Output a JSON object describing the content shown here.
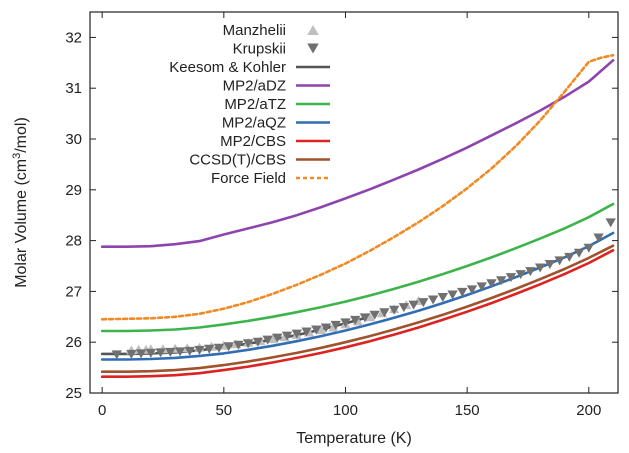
{
  "chart_data": {
    "type": "line",
    "title": "",
    "xlabel": "Temperature (K)",
    "ylabel": "Molar Volume (cm³/mol)",
    "ylabel_parts": {
      "before": "Molar Volume (cm",
      "sup": "3",
      "after": "/mol)"
    },
    "xlim": [
      -5,
      212
    ],
    "ylim": [
      25,
      32.5
    ],
    "xticks": [
      0,
      50,
      100,
      150,
      200
    ],
    "yticks": [
      25,
      26,
      27,
      28,
      29,
      30,
      31,
      32
    ],
    "grid": false,
    "legend_position": "top-left",
    "series": [
      {
        "name": "Manzhelii",
        "kind": "marker",
        "marker": "triangle-up",
        "color": "#bfbfbf",
        "x": [
          12,
          15,
          18,
          20,
          25,
          30,
          35,
          40,
          45,
          50,
          55,
          60,
          65,
          70,
          75,
          80,
          85,
          90,
          95,
          100,
          105,
          110,
          115,
          120,
          125,
          130
        ],
        "y": [
          25.85,
          25.86,
          25.86,
          25.87,
          25.87,
          25.88,
          25.89,
          25.9,
          25.92,
          25.94,
          25.97,
          26.0,
          26.03,
          26.07,
          26.11,
          26.15,
          26.2,
          26.25,
          26.3,
          26.36,
          26.42,
          26.5,
          26.58,
          26.66,
          26.74,
          26.82
        ]
      },
      {
        "name": "Krupskii",
        "kind": "marker",
        "marker": "triangle-down",
        "color": "#707070",
        "x": [
          6,
          12,
          16,
          20,
          24,
          28,
          32,
          36,
          40,
          44,
          48,
          52,
          56,
          60,
          64,
          68,
          72,
          76,
          80,
          84,
          88,
          92,
          96,
          100,
          104,
          108,
          112,
          116,
          120,
          124,
          128,
          132,
          136,
          140,
          144,
          148,
          152,
          156,
          160,
          164,
          168,
          172,
          176,
          180,
          184,
          188,
          192,
          196,
          200,
          204,
          209
        ],
        "y": [
          25.75,
          25.76,
          25.77,
          25.78,
          25.79,
          25.8,
          25.81,
          25.82,
          25.84,
          25.86,
          25.88,
          25.91,
          25.94,
          25.97,
          26.0,
          26.04,
          26.08,
          26.12,
          26.16,
          26.2,
          26.24,
          26.28,
          26.33,
          26.38,
          26.43,
          26.48,
          26.53,
          26.58,
          26.63,
          26.68,
          26.73,
          26.78,
          26.83,
          26.88,
          26.93,
          26.98,
          27.03,
          27.09,
          27.15,
          27.21,
          27.27,
          27.33,
          27.39,
          27.46,
          27.53,
          27.6,
          27.67,
          27.75,
          27.85,
          28.05,
          28.35
        ]
      },
      {
        "name": "Keesom & Kohler",
        "kind": "line",
        "color": "#555555",
        "dash": "",
        "x": [
          0,
          10,
          20,
          30,
          40,
          50,
          60,
          70,
          80,
          90,
          100,
          110
        ],
        "y": [
          25.77,
          25.77,
          25.78,
          25.8,
          25.84,
          25.9,
          25.97,
          26.05,
          26.14,
          26.25,
          26.37,
          26.5
        ]
      },
      {
        "name": "MP2/aDZ",
        "kind": "line",
        "color": "#8e44ad",
        "dash": "",
        "x": [
          0,
          10,
          20,
          30,
          40,
          50,
          60,
          70,
          80,
          90,
          100,
          110,
          120,
          130,
          140,
          150,
          160,
          170,
          180,
          190,
          200,
          210
        ],
        "y": [
          27.88,
          27.88,
          27.89,
          27.93,
          27.99,
          28.12,
          28.24,
          28.36,
          28.5,
          28.66,
          28.83,
          29.01,
          29.2,
          29.4,
          29.61,
          29.83,
          30.07,
          30.31,
          30.56,
          30.83,
          31.13,
          31.55
        ]
      },
      {
        "name": "MP2/aTZ",
        "kind": "line",
        "color": "#3cb44b",
        "dash": "",
        "x": [
          0,
          10,
          20,
          30,
          40,
          50,
          60,
          70,
          80,
          90,
          100,
          110,
          120,
          130,
          140,
          150,
          160,
          170,
          180,
          190,
          200,
          210
        ],
        "y": [
          26.22,
          26.22,
          26.23,
          26.25,
          26.29,
          26.35,
          26.42,
          26.5,
          26.59,
          26.69,
          26.8,
          26.92,
          27.05,
          27.19,
          27.34,
          27.5,
          27.67,
          27.85,
          28.04,
          28.24,
          28.46,
          28.72
        ]
      },
      {
        "name": "MP2/aQZ",
        "kind": "line",
        "color": "#2f6db5",
        "dash": "",
        "x": [
          0,
          10,
          20,
          30,
          40,
          50,
          60,
          70,
          80,
          90,
          100,
          110,
          120,
          130,
          140,
          150,
          160,
          170,
          180,
          190,
          200,
          210
        ],
        "y": [
          25.66,
          25.66,
          25.67,
          25.69,
          25.73,
          25.78,
          25.85,
          25.93,
          26.02,
          26.12,
          26.23,
          26.35,
          26.48,
          26.62,
          26.77,
          26.93,
          27.1,
          27.28,
          27.47,
          27.67,
          27.89,
          28.15
        ]
      },
      {
        "name": "MP2/CBS",
        "kind": "line",
        "color": "#dd2222",
        "dash": "",
        "x": [
          0,
          10,
          20,
          30,
          40,
          50,
          60,
          70,
          80,
          90,
          100,
          110,
          120,
          130,
          140,
          150,
          160,
          170,
          180,
          190,
          200,
          210
        ],
        "y": [
          25.32,
          25.32,
          25.33,
          25.35,
          25.39,
          25.45,
          25.52,
          25.6,
          25.69,
          25.79,
          25.9,
          26.02,
          26.15,
          26.29,
          26.44,
          26.6,
          26.77,
          26.95,
          27.14,
          27.34,
          27.56,
          27.81
        ]
      },
      {
        "name": "CCSD(T)/CBS",
        "kind": "line",
        "color": "#a0522d",
        "dash": "",
        "x": [
          0,
          10,
          20,
          30,
          40,
          50,
          60,
          70,
          80,
          90,
          100,
          110,
          120,
          130,
          140,
          150,
          160,
          170,
          180,
          190,
          200,
          210
        ],
        "y": [
          25.42,
          25.42,
          25.43,
          25.45,
          25.49,
          25.55,
          25.62,
          25.7,
          25.79,
          25.89,
          26.0,
          26.12,
          26.25,
          26.39,
          26.54,
          26.7,
          26.87,
          27.05,
          27.24,
          27.44,
          27.66,
          27.9
        ]
      },
      {
        "name": "Force Field",
        "kind": "line",
        "color": "#f08a24",
        "dash": "4,3",
        "x": [
          0,
          10,
          20,
          30,
          40,
          50,
          60,
          70,
          80,
          90,
          100,
          110,
          120,
          130,
          140,
          150,
          160,
          170,
          180,
          190,
          200,
          205,
          210
        ],
        "y": [
          26.45,
          26.46,
          26.47,
          26.5,
          26.56,
          26.66,
          26.79,
          26.95,
          27.13,
          27.33,
          27.55,
          27.8,
          28.07,
          28.36,
          28.68,
          29.03,
          29.42,
          29.86,
          30.36,
          30.93,
          31.52,
          31.6,
          31.65
        ]
      }
    ]
  }
}
